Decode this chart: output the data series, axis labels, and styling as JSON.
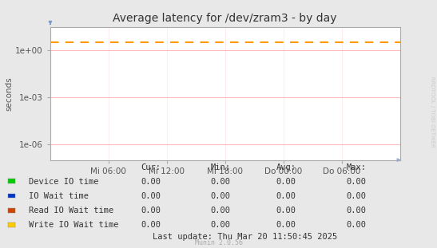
{
  "title": "Average latency for /dev/zram3 - by day",
  "ylabel": "seconds",
  "background_color": "#e8e8e8",
  "plot_bg_color": "#ffffff",
  "grid_color_horizontal": "#ffaaaa",
  "grid_color_vertical": "#ffdddd",
  "x_ticks_labels": [
    "Mi 06:00",
    "Mi 12:00",
    "Mi 18:00",
    "Do 00:00",
    "Do 06:00"
  ],
  "x_ticks_pos": [
    0.1667,
    0.3333,
    0.5,
    0.6667,
    0.8333
  ],
  "ymin": 1e-07,
  "ymax": 30.0,
  "yticks": [
    1e-06,
    0.001,
    1.0
  ],
  "ytick_labels": [
    "1e-06",
    "1e-03",
    "1e+00"
  ],
  "dashed_line_value": 3.2,
  "dashed_line_color": "#ff9900",
  "border_color": "#aaaaaa",
  "axis_color": "#aaaaaa",
  "legend_items": [
    {
      "label": "Device IO time",
      "color": "#00cc00"
    },
    {
      "label": "IO Wait time",
      "color": "#0033cc"
    },
    {
      "label": "Read IO Wait time",
      "color": "#cc4400"
    },
    {
      "label": "Write IO Wait time",
      "color": "#ffcc00"
    }
  ],
  "table_header": [
    "Cur:",
    "Min:",
    "Avg:",
    "Max:"
  ],
  "table_rows": [
    [
      "Device IO time",
      "0.00",
      "0.00",
      "0.00",
      "0.00"
    ],
    [
      "IO Wait time",
      "0.00",
      "0.00",
      "0.00",
      "0.00"
    ],
    [
      "Read IO Wait time",
      "0.00",
      "0.00",
      "0.00",
      "0.00"
    ],
    [
      "Write IO Wait time",
      "0.00",
      "0.00",
      "0.00",
      "0.00"
    ]
  ],
  "last_update": "Last update: Thu Mar 20 11:50:45 2025",
  "watermark": "Munin 2.0.56",
  "rrdtool_label": "RRDTOOL / TOBI OETIKER",
  "title_fontsize": 10,
  "axis_fontsize": 7.5,
  "table_fontsize": 7.5
}
